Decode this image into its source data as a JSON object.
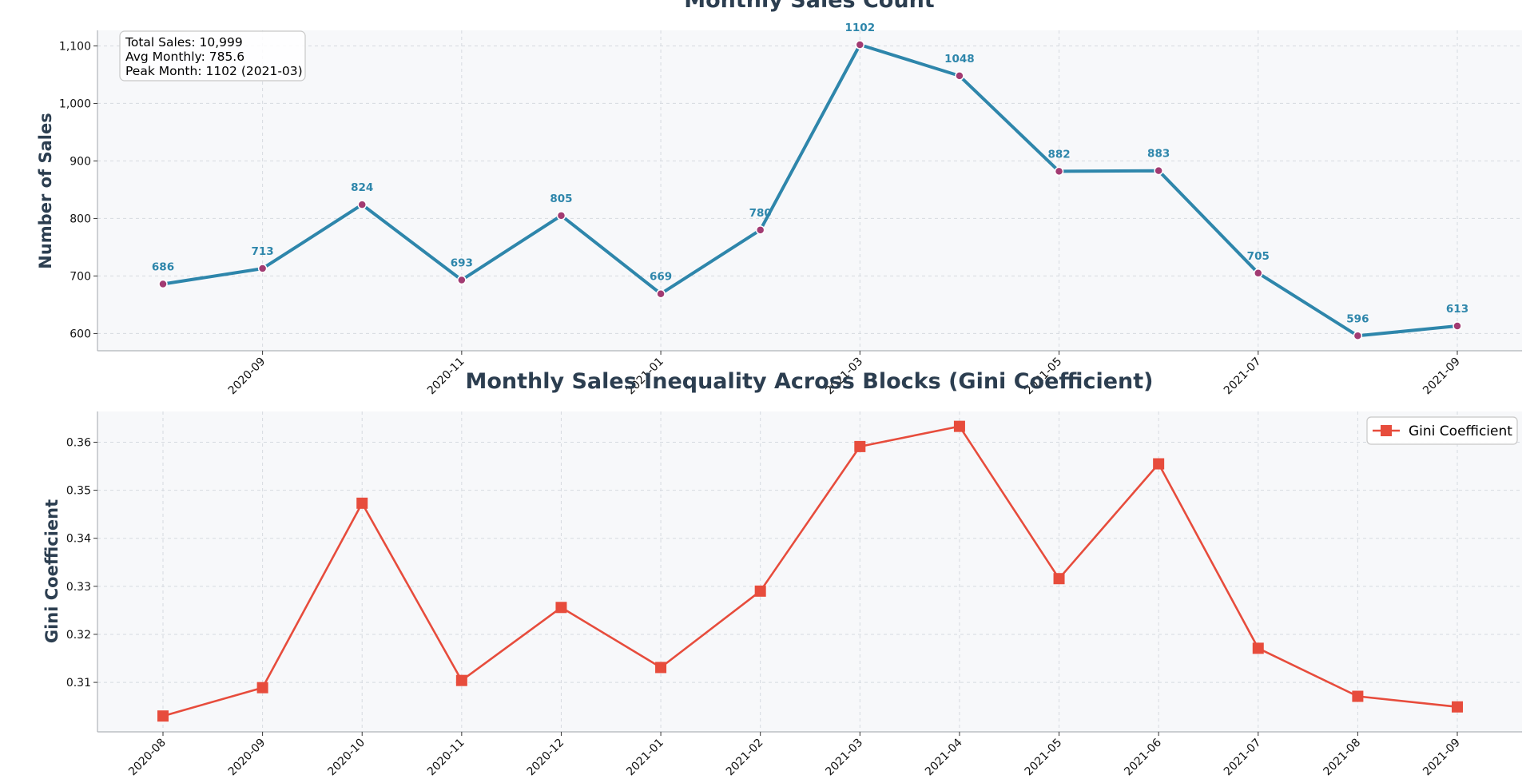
{
  "chart_data": [
    {
      "type": "line",
      "title": "Monthly Sales Count",
      "xlabel": "",
      "ylabel": "Number of Sales",
      "x": [
        "2020-08",
        "2020-09",
        "2020-10",
        "2020-11",
        "2020-12",
        "2021-01",
        "2021-02",
        "2021-03",
        "2021-04",
        "2021-05",
        "2021-06",
        "2021-07",
        "2021-08",
        "2021-09"
      ],
      "x_tick_labels": [
        "2020-09",
        "2020-11",
        "2021-01",
        "2021-03",
        "2021-05",
        "2021-07",
        "2021-09"
      ],
      "values": [
        686,
        713,
        824,
        693,
        805,
        669,
        780,
        1102,
        1048,
        882,
        883,
        705,
        596,
        613
      ],
      "data_labels": [
        "686",
        "713",
        "824",
        "693",
        "805",
        "669",
        "780",
        "1102",
        "1048",
        "882",
        "883",
        "705",
        "596",
        "613"
      ],
      "y_ticks": [
        600,
        700,
        800,
        900,
        1000,
        1100
      ],
      "y_tick_labels": [
        "600",
        "700",
        "800",
        "900",
        "1,000",
        "1,100"
      ],
      "ylim": [
        570,
        1127
      ],
      "grid": true,
      "line_color": "#2e86ab",
      "marker_color": "#a23b72",
      "stats_box": {
        "lines": [
          "Total Sales: 10,999",
          "Avg Monthly: 785.6",
          "Peak Month: 1102 (2021-03)"
        ],
        "placement": "top-left"
      }
    },
    {
      "type": "line",
      "title": "Monthly Sales Inequality Across Blocks (Gini Coefficient)",
      "xlabel": "",
      "ylabel": "Gini Coefficient",
      "x": [
        "2020-08",
        "2020-09",
        "2020-10",
        "2020-11",
        "2020-12",
        "2021-01",
        "2021-02",
        "2021-03",
        "2021-04",
        "2021-05",
        "2021-06",
        "2021-07",
        "2021-08",
        "2021-09"
      ],
      "x_tick_labels": [
        "2020-08",
        "2020-09",
        "2020-10",
        "2020-11",
        "2020-12",
        "2021-01",
        "2021-02",
        "2021-03",
        "2021-04",
        "2021-05",
        "2021-06",
        "2021-07",
        "2021-08",
        "2021-09"
      ],
      "series": [
        {
          "name": "Gini Coefficient",
          "values": [
            0.303,
            0.3089,
            0.3473,
            0.3104,
            0.3256,
            0.3131,
            0.329,
            0.3591,
            0.3633,
            0.3316,
            0.3555,
            0.3171,
            0.3071,
            0.3049
          ],
          "color": "#e74c3c",
          "marker": "square"
        }
      ],
      "y_ticks": [
        0.31,
        0.32,
        0.33,
        0.34,
        0.35,
        0.36
      ],
      "y_tick_labels": [
        "0.31",
        "0.32",
        "0.33",
        "0.34",
        "0.35",
        "0.36"
      ],
      "ylim": [
        0.2997,
        0.3664
      ],
      "grid": true,
      "legend_placement": "top-right"
    }
  ]
}
